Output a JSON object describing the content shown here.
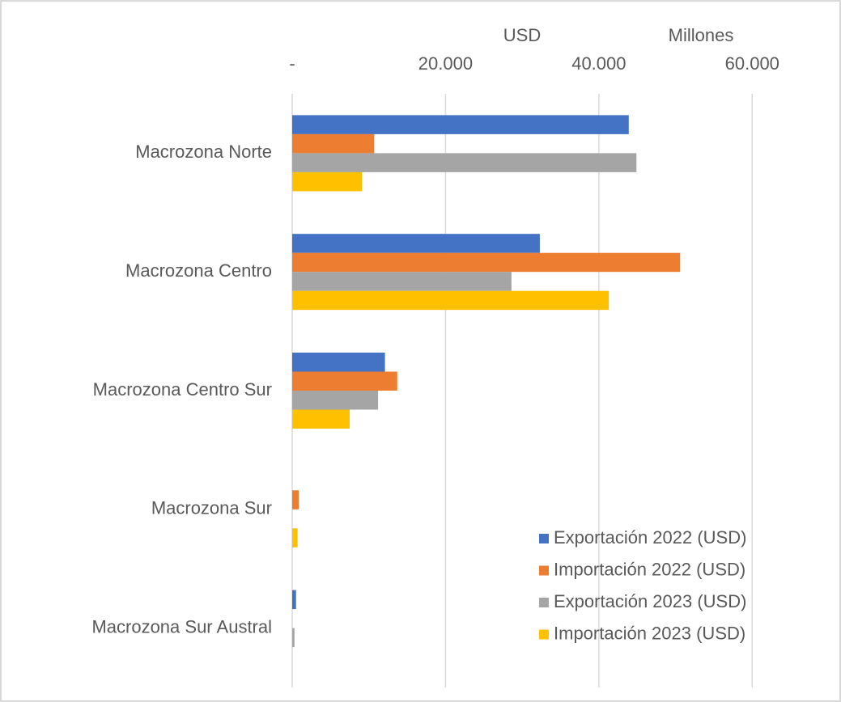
{
  "chart_data": {
    "type": "hbar",
    "x_label": "USD",
    "x_units": "Millones",
    "categories": [
      "Macrozona Norte",
      "Macrozona Centro",
      "Macrozona Centro Sur",
      "Macrozona Sur",
      "Macrozona Sur Austral"
    ],
    "series": [
      {
        "name": "Exportación 2022 (USD)",
        "color": "#4472c4",
        "values": [
          43900,
          32300,
          12100,
          0,
          500
        ]
      },
      {
        "name": "Importación 2022 (USD)",
        "color": "#ed7d31",
        "values": [
          10700,
          50600,
          13700,
          850,
          0
        ]
      },
      {
        "name": "Exportación 2023 (USD)",
        "color": "#a5a5a5",
        "values": [
          44900,
          28600,
          11200,
          0,
          300
        ]
      },
      {
        "name": "Importación 2023 (USD)",
        "color": "#ffc000",
        "values": [
          9100,
          41300,
          7500,
          700,
          0
        ]
      }
    ],
    "xlim": [
      0,
      70000
    ],
    "xticks": [
      {
        "value": 0,
        "label": "-"
      },
      {
        "value": 20000,
        "label": "20.000"
      },
      {
        "value": 40000,
        "label": "40.000"
      },
      {
        "value": 60000,
        "label": "60.000"
      }
    ],
    "grid": true,
    "legend": "bottom-right"
  }
}
